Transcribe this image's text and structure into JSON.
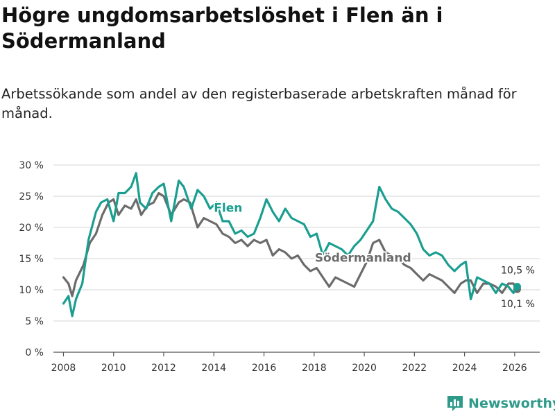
{
  "header": {
    "title": "Högre ungdomsarbetslöshet i Flen än i Södermanland",
    "subtitle": "Arbetssökande som andel av den registerbaserade arbetskraften månad för månad."
  },
  "branding": {
    "name": "Newsworthy",
    "icon": "bar-chart-logo-icon",
    "color": "#2e9a8a"
  },
  "chart_data": {
    "type": "line",
    "title": "Högre ungdomsarbetslöshet i Flen än i Södermanland",
    "xlabel": "",
    "ylabel": "",
    "xlim": [
      2007.6,
      2027.0
    ],
    "ylim": [
      0,
      30
    ],
    "grid": true,
    "x_ticks": [
      2008,
      2010,
      2012,
      2014,
      2016,
      2018,
      2020,
      2022,
      2024,
      2026
    ],
    "x_tick_labels": [
      "2008",
      "2010",
      "2012",
      "2014",
      "2016",
      "2018",
      "2020",
      "2022",
      "2024",
      "2026"
    ],
    "y_ticks": [
      0,
      5,
      10,
      15,
      20,
      25,
      30
    ],
    "y_tick_labels": [
      "0 %",
      "5 %",
      "10 %",
      "15 %",
      "20 %",
      "25 %",
      "30 %"
    ],
    "series": [
      {
        "name": "Flen",
        "color": "#1a9e90",
        "x": [
          2008.0,
          2008.2,
          2008.35,
          2008.5,
          2008.75,
          2009.0,
          2009.3,
          2009.5,
          2009.75,
          2010.0,
          2010.2,
          2010.45,
          2010.7,
          2010.9,
          2011.05,
          2011.3,
          2011.55,
          2011.8,
          2012.0,
          2012.3,
          2012.6,
          2012.8,
          2013.1,
          2013.35,
          2013.6,
          2013.85,
          2014.1,
          2014.35,
          2014.6,
          2014.85,
          2015.1,
          2015.35,
          2015.6,
          2015.85,
          2016.1,
          2016.35,
          2016.6,
          2016.85,
          2017.1,
          2017.35,
          2017.6,
          2017.85,
          2018.1,
          2018.35,
          2018.6,
          2018.85,
          2019.1,
          2019.35,
          2019.6,
          2019.85,
          2020.1,
          2020.35,
          2020.6,
          2020.85,
          2021.1,
          2021.35,
          2021.6,
          2021.85,
          2022.1,
          2022.35,
          2022.6,
          2022.85,
          2023.1,
          2023.35,
          2023.6,
          2023.85,
          2024.05,
          2024.25,
          2024.5,
          2024.75,
          2025.0,
          2025.25,
          2025.5,
          2025.75,
          2025.95,
          2026.1
        ],
        "values": [
          7.8,
          9.0,
          5.8,
          8.5,
          11.0,
          18.0,
          22.5,
          24.0,
          24.5,
          21.0,
          25.5,
          25.5,
          26.5,
          28.7,
          24.0,
          23.0,
          25.5,
          26.5,
          27.0,
          21.0,
          27.5,
          26.5,
          23.0,
          26.0,
          25.0,
          23.0,
          24.0,
          21.0,
          21.0,
          19.0,
          19.5,
          18.5,
          19.0,
          21.5,
          24.5,
          22.5,
          21.0,
          23.0,
          21.5,
          21.0,
          20.5,
          18.5,
          19.0,
          15.5,
          17.5,
          17.0,
          16.5,
          15.5,
          17.0,
          18.0,
          19.5,
          21.0,
          26.5,
          24.5,
          23.0,
          22.5,
          21.5,
          20.5,
          19.0,
          16.5,
          15.5,
          16.0,
          15.5,
          14.0,
          13.0,
          14.0,
          14.5,
          8.5,
          12.0,
          11.5,
          11.0,
          9.5,
          11.0,
          10.5,
          9.5,
          10.5
        ]
      },
      {
        "name": "Södermanland",
        "color": "#6b6b6b",
        "x": [
          2008.0,
          2008.2,
          2008.35,
          2008.5,
          2008.8,
          2009.05,
          2009.3,
          2009.55,
          2009.8,
          2010.0,
          2010.2,
          2010.45,
          2010.7,
          2010.9,
          2011.1,
          2011.35,
          2011.6,
          2011.8,
          2012.0,
          2012.3,
          2012.6,
          2012.8,
          2013.05,
          2013.35,
          2013.6,
          2013.85,
          2014.1,
          2014.35,
          2014.6,
          2014.85,
          2015.1,
          2015.35,
          2015.6,
          2015.85,
          2016.1,
          2016.35,
          2016.6,
          2016.85,
          2017.1,
          2017.35,
          2017.6,
          2017.85,
          2018.1,
          2018.35,
          2018.6,
          2018.85,
          2019.1,
          2019.35,
          2019.6,
          2019.85,
          2020.1,
          2020.35,
          2020.6,
          2020.85,
          2021.1,
          2021.35,
          2021.6,
          2021.85,
          2022.1,
          2022.35,
          2022.6,
          2022.85,
          2023.1,
          2023.35,
          2023.6,
          2023.85,
          2024.05,
          2024.25,
          2024.5,
          2024.75,
          2025.0,
          2025.25,
          2025.5,
          2025.75,
          2025.95,
          2026.1
        ],
        "values": [
          12.0,
          11.0,
          9.0,
          11.5,
          14.0,
          17.5,
          19.0,
          22.0,
          24.0,
          24.5,
          22.0,
          23.5,
          23.0,
          24.5,
          22.0,
          23.5,
          24.0,
          25.5,
          25.0,
          22.0,
          24.0,
          24.5,
          24.0,
          20.0,
          21.5,
          21.0,
          20.5,
          19.0,
          18.5,
          17.5,
          18.0,
          17.0,
          18.0,
          17.5,
          18.0,
          15.5,
          16.5,
          16.0,
          15.0,
          15.5,
          14.0,
          13.0,
          13.5,
          12.0,
          10.5,
          12.0,
          11.5,
          11.0,
          10.5,
          12.5,
          14.5,
          17.5,
          18.0,
          16.0,
          15.5,
          15.0,
          14.0,
          13.5,
          12.5,
          11.5,
          12.5,
          12.0,
          11.5,
          10.5,
          9.5,
          11.0,
          11.5,
          11.5,
          9.5,
          11.0,
          11.0,
          10.5,
          9.5,
          11.0,
          11.0,
          10.1
        ]
      }
    ],
    "annotations": [
      {
        "text": "Flen",
        "series": "Flen",
        "x": 2014.0,
        "y": 22.5
      },
      {
        "text": "Södermanland",
        "series": "Södermanland",
        "x": 2019.95,
        "y": 14.5
      },
      {
        "text": "10,5 %",
        "series": "Flen",
        "x": 2026.1,
        "y": 10.5
      },
      {
        "text": "10,1 %",
        "series": "Södermanland",
        "x": 2026.1,
        "y": 10.1
      }
    ]
  }
}
